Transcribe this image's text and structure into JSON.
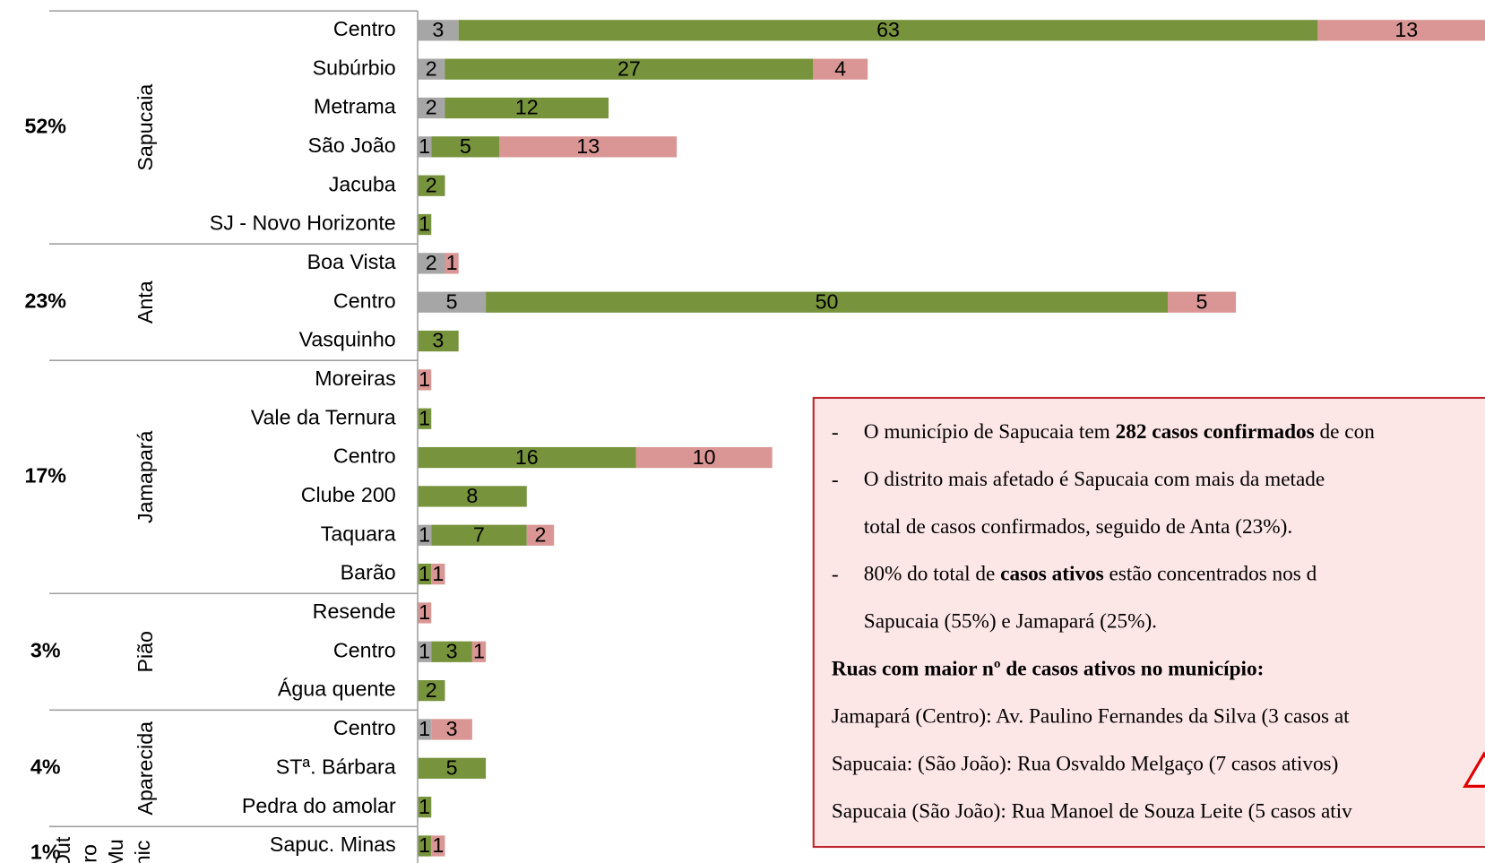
{
  "chart_data": {
    "type": "stacked-bar-h",
    "groups": [
      {
        "name": "Sapucaia",
        "share": 52,
        "share_label": "52%",
        "categories": [
          "Centro",
          "Subúrbio",
          "Metrama",
          "São João",
          "Jacuba",
          "SJ - Novo Horizonte"
        ]
      },
      {
        "name": "Anta",
        "share": 23,
        "share_label": "23%",
        "categories": [
          "Boa Vista",
          "Centro",
          "Vasquinho"
        ]
      },
      {
        "name": "Jamapará",
        "share": 17,
        "share_label": "17%",
        "categories": [
          "Moreiras",
          "Vale da Ternura",
          "Centro",
          "Clube 200",
          "Taquara",
          "Barão"
        ]
      },
      {
        "name": "Pião",
        "share": 3,
        "share_label": "3%",
        "categories": [
          "Resende",
          "Centro",
          "Água quente"
        ]
      },
      {
        "name": "Aparecida",
        "share": 4,
        "share_label": "4%",
        "categories": [
          "Centro",
          "STª. Bárbara",
          "Pedra do amolar"
        ]
      },
      {
        "name_lines": [
          "Out",
          "ro",
          "Mu",
          "nic"
        ],
        "share": 1,
        "share_label": "1%",
        "categories": [
          "Sapuc. Minas"
        ]
      }
    ],
    "series": [
      {
        "color": "#a6a6a6",
        "values": [
          3,
          2,
          2,
          1,
          null,
          null,
          2,
          5,
          null,
          null,
          null,
          null,
          null,
          1,
          null,
          null,
          1,
          null,
          1,
          null,
          null,
          null
        ]
      },
      {
        "color": "#77933c",
        "values": [
          63,
          27,
          12,
          5,
          2,
          1,
          null,
          50,
          3,
          null,
          1,
          16,
          8,
          7,
          1,
          null,
          3,
          2,
          null,
          5,
          1,
          1
        ]
      },
      {
        "color": "#d99694",
        "values": [
          13,
          4,
          null,
          13,
          null,
          null,
          1,
          5,
          null,
          1,
          null,
          10,
          null,
          2,
          1,
          1,
          1,
          null,
          3,
          null,
          null,
          1
        ]
      }
    ]
  },
  "note": {
    "bullets": [
      {
        "marker": "-",
        "lines": [
          [
            {
              "text": "O município de Sapucaia tem ",
              "bold": false
            },
            {
              "text": "282 casos confirmados",
              "bold": true
            },
            {
              "text": " de con",
              "bold": false
            }
          ]
        ]
      },
      {
        "marker": "-",
        "lines": [
          [
            {
              "text": "O distrito mais afetado é Sapucaia com mais da metade",
              "bold": false
            }
          ],
          [
            {
              "text": "total de casos confirmados, seguido de Anta (23%).",
              "bold": false
            }
          ]
        ]
      },
      {
        "marker": "-",
        "lines": [
          [
            {
              "text": "80% do total de ",
              "bold": false
            },
            {
              "text": "casos ativos",
              "bold": true
            },
            {
              "text": " estão concentrados nos d",
              "bold": false
            }
          ],
          [
            {
              "text": "Sapucaia (55%) e Jamapará (25%).",
              "bold": false
            }
          ]
        ]
      }
    ],
    "heading": "Ruas com maior nº de casos ativos no município:",
    "streets": [
      "Jamapará (Centro): Av. Paulino Fernandes da Silva (3 casos at",
      "Sapucaia: (São João): Rua Osvaldo Melgaço (7 casos ativos)",
      "Sapucaia (São João): Rua Manoel de Souza Leite (5 casos ativ"
    ]
  }
}
